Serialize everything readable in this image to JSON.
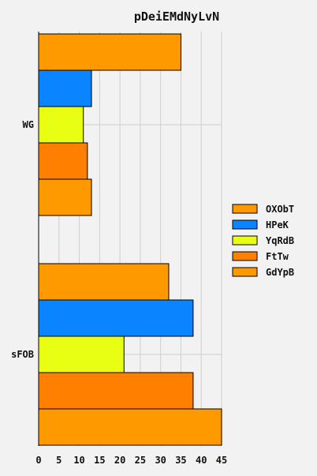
{
  "chart_data": {
    "type": "bar",
    "orientation": "horizontal",
    "title": "pDeiEMdNyLvN",
    "xlabel": "",
    "ylabel": "",
    "xlim": [
      0,
      45
    ],
    "xticks": [
      0,
      5,
      10,
      15,
      20,
      25,
      30,
      35,
      40,
      45
    ],
    "grid": true,
    "legend_position": "right",
    "categories": [
      "WG",
      "sFOB"
    ],
    "series": [
      {
        "name": "OXObT",
        "color": "#ff9900",
        "values": [
          35,
          32
        ]
      },
      {
        "name": "HPeK",
        "color": "#0a84ff",
        "values": [
          13,
          38
        ]
      },
      {
        "name": "YqRdB",
        "color": "#e8ff14",
        "values": [
          11,
          21
        ]
      },
      {
        "name": "FtTw",
        "color": "#ff8000",
        "values": [
          12,
          38
        ]
      },
      {
        "name": "GdYpB",
        "color": "#ff9900",
        "values": [
          13,
          45
        ]
      }
    ]
  }
}
